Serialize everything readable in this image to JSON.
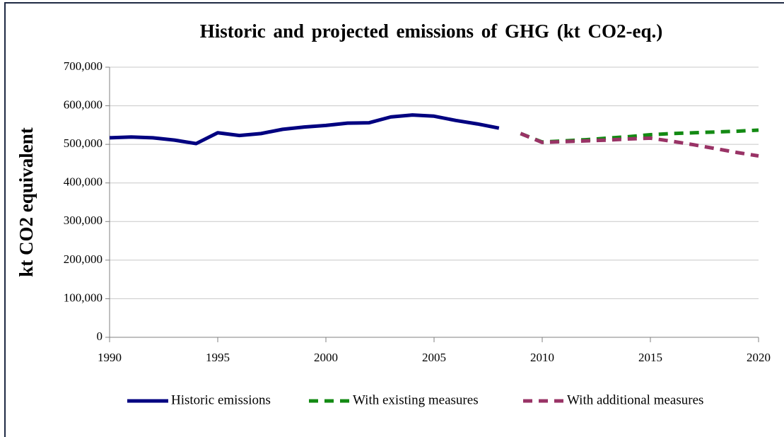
{
  "chart_data": {
    "type": "line",
    "title": "Historic and projected emissions of GHG (kt CO2-eq.)",
    "y_label": "kt CO2 equivalent",
    "x": [
      1990,
      1991,
      1992,
      1993,
      1994,
      1995,
      1996,
      1997,
      1998,
      1999,
      2000,
      2001,
      2002,
      2003,
      2004,
      2005,
      2006,
      2007,
      2008,
      2009,
      2010,
      2011,
      2012,
      2013,
      2014,
      2015,
      2016,
      2017,
      2018,
      2019,
      2020
    ],
    "series": [
      {
        "name": "Historic emissions",
        "color": "#000080",
        "dash": "solid",
        "values": [
          517000,
          519000,
          517000,
          511000,
          502000,
          530000,
          523000,
          528000,
          539000,
          545000,
          549000,
          555000,
          556000,
          571000,
          576000,
          573000,
          562000,
          553000,
          542000,
          null,
          null,
          null,
          null,
          null,
          null,
          null,
          null,
          null,
          null,
          null,
          null
        ]
      },
      {
        "name": "With existing measures",
        "color": "#138a13",
        "dash": "dashed",
        "values": [
          null,
          null,
          null,
          null,
          null,
          null,
          null,
          null,
          null,
          null,
          null,
          null,
          null,
          null,
          null,
          null,
          null,
          null,
          null,
          528000,
          506000,
          509000,
          512000,
          516000,
          520000,
          525000,
          528000,
          530000,
          532000,
          534000,
          537000
        ]
      },
      {
        "name": "With additional measures",
        "color": "#993366",
        "dash": "dashed",
        "values": [
          null,
          null,
          null,
          null,
          null,
          null,
          null,
          null,
          null,
          null,
          null,
          null,
          null,
          null,
          null,
          null,
          null,
          null,
          null,
          528000,
          505000,
          507000,
          509000,
          511000,
          514000,
          516000,
          508000,
          499000,
          489000,
          479000,
          470000
        ]
      }
    ],
    "xlim": [
      1990,
      2020
    ],
    "xticks": [
      1990,
      1995,
      2000,
      2005,
      2010,
      2015,
      2020
    ],
    "ylim": [
      0,
      700000
    ],
    "yticks": [
      0,
      {
        "value": 100000,
        "label": "100,000"
      },
      {
        "value": 200000,
        "label": "200,000"
      },
      {
        "value": 300000,
        "label": "300,000"
      },
      {
        "value": 400000,
        "label": "400,000"
      },
      {
        "value": 500000,
        "label": "500,000"
      },
      {
        "value": 600000,
        "label": "600,000"
      },
      {
        "value": 700000,
        "label": "700,000"
      }
    ],
    "grid": true,
    "legend": "bottom"
  }
}
